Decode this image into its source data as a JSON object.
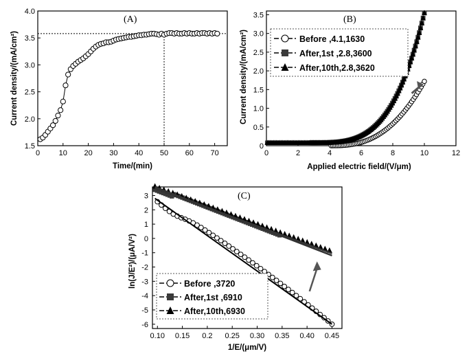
{
  "chart_data": [
    {
      "type": "scatter",
      "panel": "(A)",
      "xlabel": "Time/(min)",
      "ylabel": "Current density/(mA/cm²)",
      "xlim": [
        0,
        75
      ],
      "ylim": [
        1.5,
        4.0
      ],
      "xticks": [
        "0",
        "10",
        "20",
        "30",
        "40",
        "50",
        "60",
        "70"
      ],
      "yticks": [
        "1.5",
        "2.0",
        "2.5",
        "3.0",
        "3.5",
        "4.0"
      ],
      "marker": "open-circle",
      "reference_lines": {
        "y": 3.58,
        "x": 50
      },
      "series": [
        {
          "x": [
            1,
            2,
            3,
            4,
            5,
            6,
            7,
            8,
            9,
            10,
            11,
            12,
            13,
            14,
            15,
            16,
            17,
            18,
            19,
            20,
            21,
            22,
            23,
            24,
            25,
            26,
            27,
            28,
            29,
            30,
            31,
            32,
            33,
            34,
            35,
            36,
            37,
            38,
            39,
            40,
            41,
            42,
            43,
            44,
            45,
            46,
            47,
            48,
            49,
            50,
            51,
            52,
            53,
            54,
            55,
            56,
            57,
            58,
            59,
            60,
            61,
            62,
            63,
            64,
            65,
            66,
            67,
            68,
            69,
            70,
            71
          ],
          "y": [
            1.62,
            1.65,
            1.7,
            1.76,
            1.82,
            1.88,
            1.96,
            2.06,
            2.16,
            2.32,
            2.62,
            2.82,
            2.92,
            2.98,
            3.02,
            3.06,
            3.09,
            3.12,
            3.16,
            3.2,
            3.25,
            3.3,
            3.34,
            3.37,
            3.39,
            3.4,
            3.42,
            3.42,
            3.43,
            3.45,
            3.47,
            3.48,
            3.49,
            3.5,
            3.51,
            3.52,
            3.52,
            3.53,
            3.54,
            3.55,
            3.55,
            3.56,
            3.56,
            3.57,
            3.58,
            3.58,
            3.57,
            3.56,
            3.58,
            3.56,
            3.58,
            3.59,
            3.59,
            3.58,
            3.59,
            3.58,
            3.58,
            3.59,
            3.58,
            3.59,
            3.58,
            3.58,
            3.59,
            3.58,
            3.59,
            3.59,
            3.58,
            3.59,
            3.58,
            3.59,
            3.58
          ]
        }
      ]
    },
    {
      "type": "scatter",
      "panel": "(B)",
      "xlabel": "Applied electric field/(V/μm)",
      "ylabel": "Current density/(mA/cm²)",
      "xlim": [
        0,
        12
      ],
      "ylim": [
        0,
        3.6
      ],
      "xticks": [
        "0",
        "2",
        "4",
        "6",
        "8",
        "10",
        "12"
      ],
      "yticks": [
        "0",
        "0.5",
        "1.0",
        "1.5",
        "2.0",
        "2.5",
        "3.0",
        "3.5"
      ],
      "legend_position": "upper-left",
      "legend": [
        "Before     ,4.1,1630",
        "After,1st  ,2.8,3600",
        "After,10th,2.8,3620"
      ],
      "series": [
        {
          "name": "Before     ,4.1,1630",
          "marker": "open-circle",
          "x0": 4.1,
          "x1": 10.0,
          "exponent": 2.6,
          "y_end": 1.72,
          "points": 60,
          "baseline": 0
        },
        {
          "name": "After,1st  ,2.8,3600",
          "marker": "filled-square",
          "x0": 2.8,
          "x1": 10.0,
          "exponent": 3.6,
          "y_end": 3.55,
          "points": 90,
          "baseline": 0.08
        },
        {
          "name": "After,10th,2.8,3620",
          "marker": "filled-triangle",
          "x0": 2.8,
          "x1": 10.0,
          "exponent": 3.6,
          "y_end": 3.55,
          "points": 90,
          "baseline": 0.08
        }
      ],
      "annotations": [
        {
          "type": "arrow",
          "from": [
            9.2,
            1.4
          ],
          "to": [
            9.7,
            1.58
          ]
        }
      ]
    },
    {
      "type": "scatter",
      "panel": "(C)",
      "xlabel": "1/E/(μm/V)",
      "ylabel": "ln(J/E²)/(μA/V²)",
      "xlim": [
        0.09,
        0.47
      ],
      "ylim": [
        -6.3,
        3.6
      ],
      "xticks": [
        "0.10",
        "0.15",
        "0.2",
        "0.25",
        "0.30",
        "0.35",
        "0.40",
        "0.45"
      ],
      "yticks": [
        "3",
        "2",
        "1",
        "0",
        "-1",
        "-2",
        "-3",
        "-4",
        "-5",
        "-6"
      ],
      "legend_position": "lower-left",
      "legend": [
        "Before     ,3720",
        "After,1st  ,6910",
        "After,10th,6930"
      ],
      "series": [
        {
          "name": "Before     ,3720",
          "marker": "open-circle",
          "x_start": 0.1,
          "x_end": 0.45,
          "fit": [
            [
              0.095,
              2.8
            ],
            [
              0.45,
              -6.0
            ]
          ],
          "bulge": 0.35,
          "points": 45
        },
        {
          "name": "After,1st  ,6910",
          "marker": "filled-square",
          "x_start": 0.095,
          "x_end": 0.345,
          "fit": [
            [
              0.095,
              3.6
            ],
            [
              0.45,
              -1.2
            ]
          ],
          "points": 60
        },
        {
          "name": "After,10th,6930",
          "marker": "filled-triangle",
          "x_start": 0.095,
          "x_end": 0.445,
          "fit": [
            [
              0.095,
              3.5
            ],
            [
              0.45,
              -1.05
            ]
          ],
          "points": 40
        }
      ],
      "annotations": [
        {
          "type": "arrow",
          "from": [
            0.405,
            -3.7
          ],
          "to": [
            0.42,
            -1.8
          ]
        }
      ]
    }
  ],
  "colors": {
    "marker": "#000000",
    "fit_line": "#333333",
    "filled_marker": "#3a3a3a",
    "arrow": "#555555",
    "legend_border": "#555555"
  }
}
